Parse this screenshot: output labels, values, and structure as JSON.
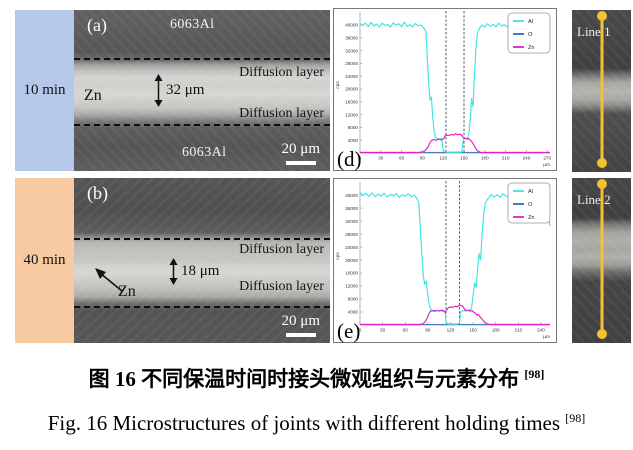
{
  "colors": {
    "blue_strip": "#b5c8ea",
    "orange_strip": "#f8caa2",
    "al_line": "#3ce4e4",
    "o_line": "#2a6fc0",
    "zn_line": "#df1ec9",
    "line_scan_yellow": "#f1c232"
  },
  "figure": {
    "rows": [
      {
        "time_label": "10 min",
        "panel_label": "(a)",
        "material_top": "6063Al",
        "material_bottom": "6063Al",
        "zn_label": "Zn",
        "diffusion_layer_top": "Diffusion layer",
        "diffusion_layer_bottom": "Diffusion layer",
        "thickness_label": "32 μm",
        "scale_label": "20 μm",
        "chart_label": "(d)",
        "line_label": "Line 1"
      },
      {
        "time_label": "40 min",
        "panel_label": "(b)",
        "zn_label": "Zn",
        "diffusion_layer_top": "Diffusion layer",
        "diffusion_layer_bottom": "Diffusion layer",
        "thickness_label": "18 μm",
        "scale_label": "20 μm",
        "chart_label": "(e)",
        "line_label": "Line 2"
      }
    ]
  },
  "captions": {
    "zh": "图 16  不同保温时间时接头微观组织与元素分布 ",
    "zh_sup": "[98]",
    "en": "Fig. 16 Microstructures of joints with different holding times ",
    "en_sup": "[98]"
  },
  "chart_data": [
    {
      "type": "line",
      "panel": "(d)",
      "xlabel": "μm",
      "ylabel": "cps",
      "xlim": [
        0,
        274
      ],
      "ylim": [
        0,
        42500
      ],
      "xticks": [
        0,
        30,
        60,
        90,
        120,
        150,
        180,
        210,
        240,
        270
      ],
      "yticks": [
        4000,
        8000,
        12000,
        16000,
        20000,
        24000,
        28000,
        32000,
        36000,
        40000
      ],
      "grid": false,
      "legend_position": "top-right",
      "dashed_lines_x": [
        124,
        150
      ],
      "series": [
        {
          "name": "Al",
          "color": "#3ce4e4",
          "points": [
            [
              0,
              40500
            ],
            [
              4,
              39800
            ],
            [
              8,
              40600
            ],
            [
              12,
              39500
            ],
            [
              16,
              40800
            ],
            [
              20,
              39700
            ],
            [
              24,
              40300
            ],
            [
              28,
              39400
            ],
            [
              32,
              40600
            ],
            [
              36,
              39800
            ],
            [
              40,
              40200
            ],
            [
              44,
              39300
            ],
            [
              48,
              40700
            ],
            [
              52,
              39900
            ],
            [
              56,
              40400
            ],
            [
              60,
              39500
            ],
            [
              64,
              40900
            ],
            [
              68,
              39600
            ],
            [
              72,
              40100
            ],
            [
              76,
              39400
            ],
            [
              80,
              40500
            ],
            [
              84,
              39700
            ],
            [
              88,
              40000
            ],
            [
              92,
              39000
            ],
            [
              95,
              38000
            ],
            [
              97,
              30000
            ],
            [
              99,
              22000
            ],
            [
              101,
              16500
            ],
            [
              103,
              17500
            ],
            [
              105,
              11000
            ],
            [
              107,
              6500
            ],
            [
              109,
              4800
            ],
            [
              112,
              4500
            ],
            [
              115,
              4300
            ],
            [
              118,
              4500
            ],
            [
              120,
              800
            ],
            [
              124,
              300
            ],
            [
              128,
              250
            ],
            [
              132,
              300
            ],
            [
              136,
              250
            ],
            [
              140,
              300
            ],
            [
              144,
              250
            ],
            [
              147,
              400
            ],
            [
              149,
              4200
            ],
            [
              152,
              4500
            ],
            [
              155,
              4300
            ],
            [
              157,
              6000
            ],
            [
              159,
              11000
            ],
            [
              161,
              17000
            ],
            [
              163,
              14500
            ],
            [
              165,
              24000
            ],
            [
              167,
              32000
            ],
            [
              169,
              37000
            ],
            [
              172,
              39000
            ],
            [
              176,
              40000
            ],
            [
              180,
              39300
            ],
            [
              184,
              40400
            ],
            [
              188,
              39600
            ],
            [
              192,
              40200
            ],
            [
              196,
              39400
            ],
            [
              200,
              40600
            ],
            [
              204,
              39700
            ],
            [
              208,
              40100
            ],
            [
              212,
              39500
            ],
            [
              216,
              40400
            ],
            [
              220,
              39800
            ],
            [
              224,
              40000
            ],
            [
              228,
              39300
            ],
            [
              232,
              40500
            ],
            [
              236,
              39700
            ],
            [
              240,
              40100
            ],
            [
              244,
              39500
            ],
            [
              248,
              40300
            ],
            [
              252,
              39800
            ],
            [
              256,
              40000
            ],
            [
              260,
              39600
            ],
            [
              264,
              40200
            ],
            [
              268,
              39800
            ],
            [
              272,
              39900
            ]
          ]
        },
        {
          "name": "O",
          "color": "#2a6fc0",
          "points": [
            [
              0,
              180
            ],
            [
              274,
              180
            ]
          ]
        },
        {
          "name": "Zn",
          "color": "#df1ec9",
          "points": [
            [
              0,
              150
            ],
            [
              85,
              150
            ],
            [
              92,
              400
            ],
            [
              97,
              1500
            ],
            [
              100,
              2800
            ],
            [
              103,
              3900
            ],
            [
              106,
              4200
            ],
            [
              110,
              4000
            ],
            [
              114,
              4300
            ],
            [
              118,
              4100
            ],
            [
              121,
              4600
            ],
            [
              123,
              5400
            ],
            [
              126,
              5600
            ],
            [
              129,
              5500
            ],
            [
              132,
              5800
            ],
            [
              135,
              5600
            ],
            [
              138,
              6000
            ],
            [
              141,
              5700
            ],
            [
              144,
              5900
            ],
            [
              147,
              5500
            ],
            [
              149,
              4800
            ],
            [
              152,
              4500
            ],
            [
              155,
              4600
            ],
            [
              158,
              4300
            ],
            [
              161,
              3600
            ],
            [
              164,
              2600
            ],
            [
              167,
              1400
            ],
            [
              170,
              600
            ],
            [
              174,
              200
            ],
            [
              180,
              150
            ],
            [
              274,
              150
            ]
          ]
        }
      ]
    },
    {
      "type": "line",
      "panel": "(e)",
      "xlabel": "μm",
      "ylabel": "cps",
      "xlim": [
        0,
        252
      ],
      "ylim": [
        0,
        42500
      ],
      "xticks": [
        0,
        30,
        60,
        90,
        120,
        150,
        180,
        210,
        240
      ],
      "yticks": [
        4000,
        8000,
        12000,
        16000,
        20000,
        24000,
        28000,
        32000,
        36000,
        40000
      ],
      "grid": false,
      "legend_position": "top-right",
      "dashed_lines_x": [
        114,
        132
      ],
      "series": [
        {
          "name": "Al",
          "color": "#3ce4e4",
          "points": [
            [
              0,
              40800
            ],
            [
              4,
              39900
            ],
            [
              8,
              40500
            ],
            [
              12,
              39600
            ],
            [
              16,
              40700
            ],
            [
              20,
              39500
            ],
            [
              24,
              40300
            ],
            [
              28,
              39700
            ],
            [
              32,
              40600
            ],
            [
              36,
              39400
            ],
            [
              40,
              40200
            ],
            [
              44,
              39800
            ],
            [
              48,
              40500
            ],
            [
              52,
              39300
            ],
            [
              56,
              40100
            ],
            [
              60,
              39700
            ],
            [
              64,
              40400
            ],
            [
              68,
              39500
            ],
            [
              72,
              40000
            ],
            [
              76,
              38800
            ],
            [
              78,
              37500
            ],
            [
              80,
              30000
            ],
            [
              82,
              22000
            ],
            [
              84,
              15000
            ],
            [
              86,
              12500
            ],
            [
              88,
              13500
            ],
            [
              90,
              9000
            ],
            [
              92,
              6000
            ],
            [
              94,
              4800
            ],
            [
              97,
              4400
            ],
            [
              100,
              4600
            ],
            [
              103,
              4300
            ],
            [
              106,
              4500
            ],
            [
              109,
              4200
            ],
            [
              112,
              4400
            ],
            [
              113,
              3800
            ],
            [
              114,
              800
            ],
            [
              117,
              300
            ],
            [
              120,
              350
            ],
            [
              123,
              300
            ],
            [
              126,
              350
            ],
            [
              129,
              300
            ],
            [
              132,
              600
            ],
            [
              134,
              4200
            ],
            [
              137,
              4400
            ],
            [
              140,
              4300
            ],
            [
              143,
              4500
            ],
            [
              146,
              4200
            ],
            [
              148,
              5500
            ],
            [
              150,
              9000
            ],
            [
              152,
              13000
            ],
            [
              154,
              11500
            ],
            [
              156,
              17000
            ],
            [
              158,
              22000
            ],
            [
              160,
              20000
            ],
            [
              162,
              28000
            ],
            [
              164,
              34000
            ],
            [
              166,
              37500
            ],
            [
              170,
              39000
            ],
            [
              174,
              40200
            ],
            [
              178,
              39400
            ],
            [
              182,
              40100
            ],
            [
              186,
              39300
            ],
            [
              190,
              40400
            ],
            [
              194,
              39600
            ],
            [
              198,
              40000
            ],
            [
              202,
              39200
            ],
            [
              206,
              40300
            ],
            [
              210,
              39500
            ],
            [
              214,
              40100
            ],
            [
              218,
              39700
            ],
            [
              222,
              38500
            ],
            [
              224,
              36500
            ],
            [
              226,
              38800
            ],
            [
              230,
              40000
            ],
            [
              234,
              39400
            ],
            [
              238,
              40200
            ],
            [
              242,
              39600
            ],
            [
              246,
              40100
            ],
            [
              248,
              38500
            ],
            [
              250,
              34000
            ],
            [
              252,
              30500
            ]
          ]
        },
        {
          "name": "O",
          "color": "#2a6fc0",
          "points": [
            [
              0,
              180
            ],
            [
              252,
              180
            ]
          ]
        },
        {
          "name": "Zn",
          "color": "#df1ec9",
          "points": [
            [
              0,
              150
            ],
            [
              78,
              150
            ],
            [
              83,
              300
            ],
            [
              86,
              900
            ],
            [
              89,
              2000
            ],
            [
              91,
              3200
            ],
            [
              93,
              4200
            ],
            [
              96,
              4400
            ],
            [
              99,
              4200
            ],
            [
              102,
              4500
            ],
            [
              105,
              4300
            ],
            [
              108,
              4600
            ],
            [
              111,
              4400
            ],
            [
              113,
              3900
            ],
            [
              115,
              4600
            ],
            [
              117,
              5300
            ],
            [
              120,
              5600
            ],
            [
              123,
              5400
            ],
            [
              126,
              5800
            ],
            [
              129,
              5600
            ],
            [
              132,
              6200
            ],
            [
              135,
              5900
            ],
            [
              137,
              5500
            ],
            [
              139,
              4700
            ],
            [
              142,
              4400
            ],
            [
              145,
              4600
            ],
            [
              147,
              4300
            ],
            [
              149,
              4400
            ],
            [
              151,
              3900
            ],
            [
              153,
              3600
            ],
            [
              155,
              3000
            ],
            [
              157,
              3300
            ],
            [
              159,
              2600
            ],
            [
              162,
              1800
            ],
            [
              165,
              900
            ],
            [
              168,
              400
            ],
            [
              172,
              200
            ],
            [
              178,
              150
            ],
            [
              252,
              150
            ]
          ]
        }
      ]
    }
  ]
}
